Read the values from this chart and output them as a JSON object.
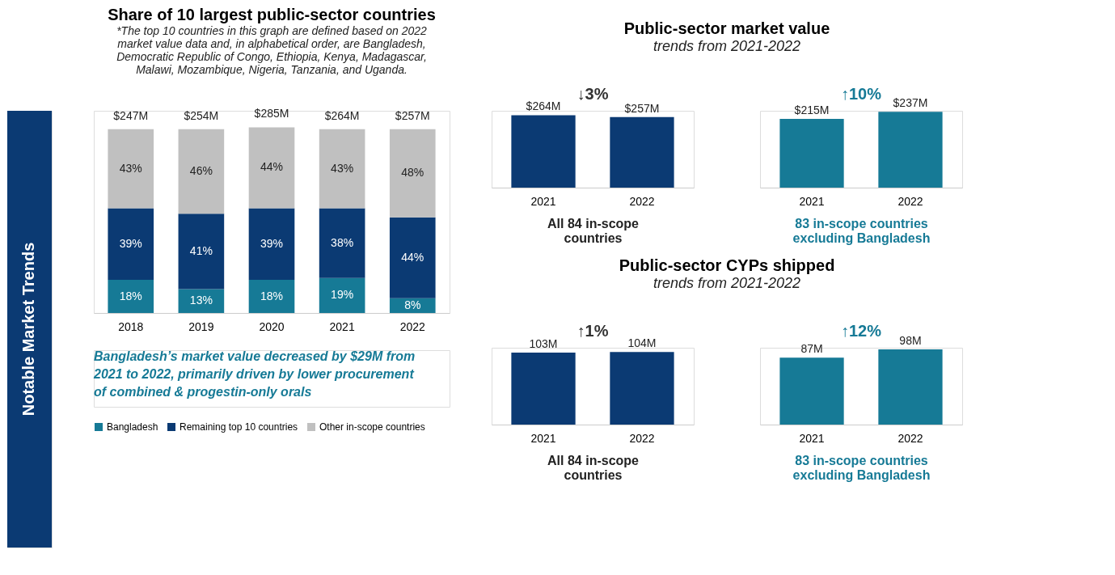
{
  "chart_data": [
    {
      "type": "bar",
      "title": "Share of 10 largest public-sector countries",
      "subtitle": "*The top 10 countries in this graph are defined based on 2022 market value data and, in alphabetical order, are Bangladesh, Democratic Republic of Congo, Ethiopia, Kenya, Madagascar, Malawi, Mozambique, Nigeria, Tanzania, and Uganda.",
      "stacked": true,
      "legend": "bottom",
      "categories": [
        "2018",
        "2019",
        "2020",
        "2021",
        "2022"
      ],
      "series": [
        {
          "name": "Bangladesh",
          "color": "#167a96",
          "values": [
            18,
            13,
            18,
            19,
            8
          ],
          "value_labels": [
            "18%",
            "13%",
            "18%",
            "19%",
            "8%"
          ]
        },
        {
          "name": "Remaining top 10 countries",
          "color": "#0b3a73",
          "values": [
            39,
            41,
            39,
            38,
            44
          ],
          "value_labels": [
            "39%",
            "41%",
            "39%",
            "38%",
            "44%"
          ]
        },
        {
          "name": "Other in-scope countries",
          "color": "#c0c0c0",
          "values": [
            43,
            46,
            44,
            43,
            48
          ],
          "value_labels": [
            "43%",
            "46%",
            "44%",
            "43%",
            "48%"
          ]
        }
      ],
      "annotations": [
        "Notable Market Trends",
        "Bangladesh’s market value decreased by $29M from 2021 to 2022, primarily driven by lower procurement of combined & progestin-only orals",
        "$247M",
        "$254M",
        "$285M",
        "$264M",
        "$257M"
      ]
    },
    {
      "type": "bar",
      "title": "Public-sector market value",
      "subtitle": "trends from 2021-2022",
      "categories": [
        "2021",
        "2022"
      ],
      "values": [
        264,
        257
      ],
      "value_labels": [
        "$264M",
        "$257M"
      ],
      "color": "#0b3a73",
      "xlabel": "All 84 in-scope countries",
      "annotations": [
        "↓3%"
      ]
    },
    {
      "type": "bar",
      "categories": [
        "2021",
        "2022"
      ],
      "values": [
        215,
        237
      ],
      "value_labels": [
        "$215M",
        "$237M"
      ],
      "color": "#167a96",
      "xlabel": "83 in-scope countries excluding Bangladesh",
      "annotations": [
        "↑10%"
      ]
    },
    {
      "type": "bar",
      "title": "Public-sector CYPs shipped",
      "subtitle": "trends from 2021-2022",
      "categories": [
        "2021",
        "2022"
      ],
      "values": [
        103,
        104
      ],
      "value_labels": [
        "103M",
        "104M"
      ],
      "color": "#0b3a73",
      "xlabel": "All 84 in-scope countries",
      "annotations": [
        "↑1%"
      ]
    },
    {
      "type": "bar",
      "categories": [
        "2021",
        "2022"
      ],
      "values": [
        87,
        98
      ],
      "value_labels": [
        "87M",
        "98M"
      ],
      "color": "#167a96",
      "xlabel": "83 in-scope countries excluding Bangladesh",
      "annotations": [
        "↑12%"
      ]
    }
  ]
}
